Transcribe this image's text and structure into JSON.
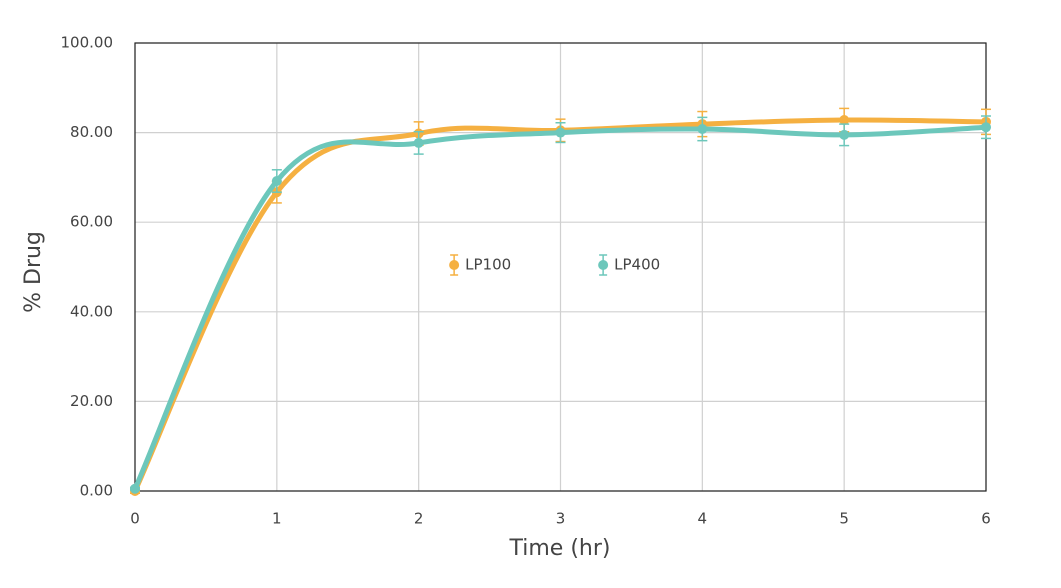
{
  "chart_data": {
    "type": "line",
    "x_label": "Time (hr)",
    "y_label": "% Drug",
    "x": [
      0,
      1,
      2,
      3,
      4,
      5,
      6
    ],
    "series": [
      {
        "name": "LP100",
        "color": "#f5b041",
        "values": [
          0,
          66.7,
          79.8,
          80.5,
          81.9,
          82.8,
          82.4
        ],
        "errors": [
          0.5,
          2.4,
          2.6,
          2.5,
          2.8,
          2.6,
          2.8
        ]
      },
      {
        "name": "LP400",
        "color": "#6cc7bb",
        "values": [
          0.5,
          69.2,
          77.7,
          80,
          80.8,
          79.5,
          81.2
        ],
        "errors": [
          0.3,
          2.5,
          2.5,
          2.2,
          2.6,
          2.4,
          2.5
        ]
      }
    ],
    "xlim": [
      0,
      6
    ],
    "xticks": [
      0,
      1,
      2,
      3,
      4,
      5,
      6
    ],
    "ylim": [
      0,
      100
    ],
    "yticks": [
      {
        "value": 0,
        "label": "0.00"
      },
      {
        "value": 20,
        "label": "20.00"
      },
      {
        "value": 40,
        "label": "40.00"
      },
      {
        "value": 60,
        "label": "60.00"
      },
      {
        "value": 80,
        "label": "80.00"
      },
      {
        "value": 100,
        "label": "100.00"
      }
    ],
    "grid": true,
    "legend": "center"
  }
}
